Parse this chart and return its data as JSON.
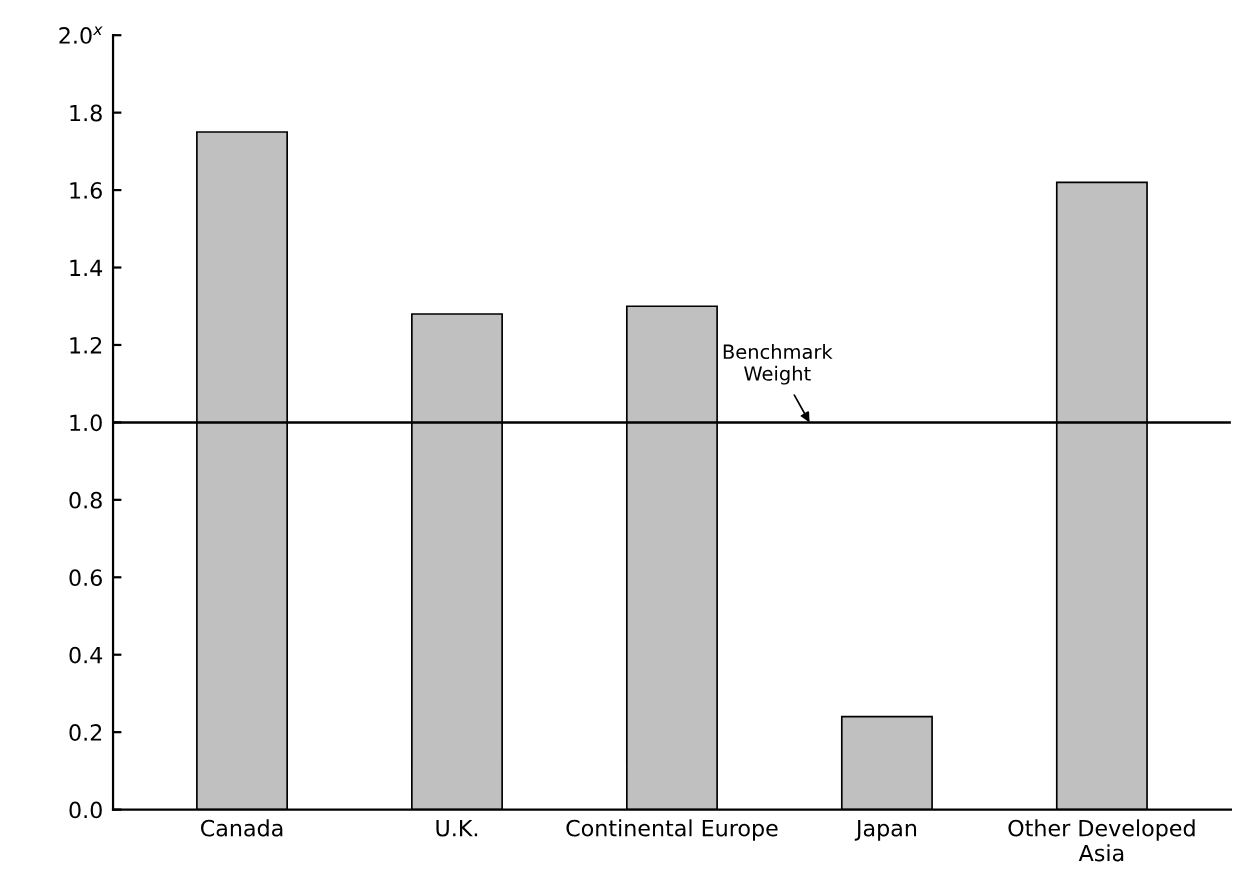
{
  "chart_data": {
    "type": "bar",
    "categories": [
      "Canada",
      "U.K.",
      "Continental Europe",
      "Japan",
      "Other Developed\nAsia"
    ],
    "values": [
      1.75,
      1.28,
      1.3,
      0.24,
      1.62
    ],
    "color": "#c0c0c0",
    "ylim": [
      0,
      2.0
    ],
    "yticks": [
      {
        "value": 0,
        "label": "0.0"
      },
      {
        "value": 0.2,
        "label": "0.2"
      },
      {
        "value": 0.4,
        "label": "0.4"
      },
      {
        "value": 0.6,
        "label": "0.6"
      },
      {
        "value": 0.8,
        "label": "0.8"
      },
      {
        "value": 1.0,
        "label": "1.0"
      },
      {
        "value": 1.2,
        "label": "1.2"
      },
      {
        "value": 1.4,
        "label": "1.4"
      },
      {
        "value": 1.6,
        "label": "1.6"
      },
      {
        "value": 1.8,
        "label": "1.8"
      },
      {
        "value": 2.0,
        "label": "2.0$^{x}$"
      }
    ],
    "ref_lines": [
      {
        "axis": "y",
        "value": 1.0,
        "label": "Benchmark\nWeight",
        "color": "#000000"
      }
    ],
    "grid": false,
    "legend": false
  }
}
